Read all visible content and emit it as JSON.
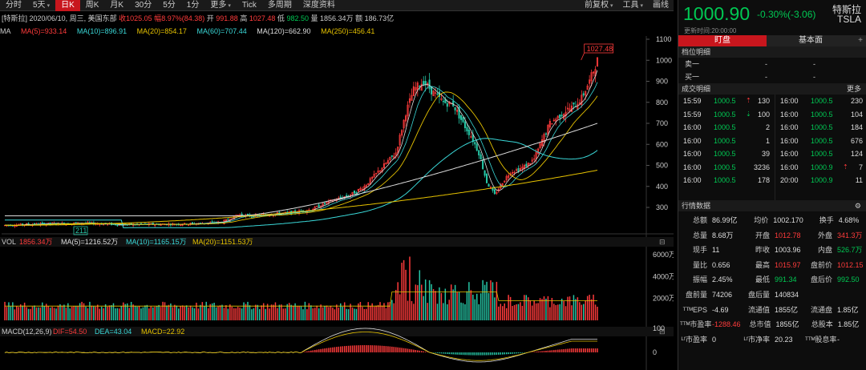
{
  "toolbar": {
    "tabs": [
      {
        "label": "分时"
      },
      {
        "label": "5天",
        "caret": "▾"
      },
      {
        "label": "日K",
        "active": true
      },
      {
        "label": "周K"
      },
      {
        "label": "月K"
      },
      {
        "label": "30分"
      },
      {
        "label": "5分"
      },
      {
        "label": "1分"
      },
      {
        "label": "更多",
        "caret": "▾"
      },
      {
        "label": "Tick"
      },
      {
        "label": "多周期"
      },
      {
        "label": "深度资料"
      }
    ],
    "right": [
      {
        "label": "前复权",
        "caret": "▾"
      },
      {
        "label": "工具",
        "caret": "▾"
      },
      {
        "label": "画线"
      }
    ]
  },
  "info": {
    "stock_tag": "[特斯拉]",
    "date": "2020/06/10, 周三, 美国东部",
    "close_label": "收",
    "close": "1025.05",
    "amp_label": "幅",
    "amp": "8.97%(84.38)",
    "open_label": "开",
    "open": "991.88",
    "high_label": "高",
    "high": "1027.48",
    "low_label": "低",
    "low": "982.50",
    "vol_label": "量",
    "vol": "1856.34万",
    "amt_label": "额",
    "amt": "186.73亿"
  },
  "ma": {
    "label": "MA",
    "ma5": "MA(5)=933.14",
    "ma10": "MA(10)=896.91",
    "ma20": "MA(20)=854.17",
    "ma60": "MA(60)=707.44",
    "ma120": "MA(120)=662.90",
    "ma250": "MA(250)=456.41"
  },
  "vol_line": {
    "label": "VOL",
    "vol": "1856.34万",
    "ma5": "MA(5)=1216.52万",
    "ma10": "MA(10)=1165.15万",
    "ma20": "MA(20)=1151.53万"
  },
  "macd_line": {
    "label": "MACD(12,26,9)",
    "dif": "DIF=54.50",
    "dea": "DEA=43.04",
    "macd": "MACD=22.92"
  },
  "chart_data": {
    "type": "candlestick",
    "price_axis": {
      "ticks": [
        1100,
        1000,
        900,
        800,
        700,
        600,
        500,
        400,
        300
      ],
      "range": [
        211,
        1100
      ]
    },
    "annotations": {
      "high_label": "1027.48",
      "low_label": "211"
    },
    "vol_axis": {
      "ticks": [
        "6000万",
        "4000万",
        "2000万"
      ]
    },
    "macd_axis": {
      "ticks": [
        100,
        0
      ]
    },
    "colors": {
      "up": "#ff3b3b",
      "down": "#26c6a6",
      "ma5": "#dddddd",
      "ma10": "#e6c200",
      "ma20": "#e6c200",
      "ma60": "#3ad8d8",
      "ma120": "#dddddd",
      "ma250": "#e6c200",
      "dif": "#dddddd",
      "dea": "#e6c200"
    }
  },
  "panel": {
    "price": "1000.90",
    "change": "-0.30%(-3.06)",
    "name": "特斯拉",
    "code": "TSLA",
    "updated": "更新时间:20:00:00",
    "tabs": [
      "盯盘",
      "基本面"
    ],
    "plus": "+",
    "bidask_title": "档位明细",
    "sell1": "卖一",
    "sell1_v1": "-",
    "sell1_v2": "-",
    "buy1": "买一",
    "buy1_v1": "-",
    "buy1_v2": "-",
    "trades_title": "成交明细",
    "trades_more": "更多",
    "trades_left": [
      {
        "t": "15:59",
        "p": "1000.5",
        "a": "⇡",
        "v": "130"
      },
      {
        "t": "15:59",
        "p": "1000.5",
        "a": "⇣",
        "v": "100"
      },
      {
        "t": "16:00",
        "p": "1000.5",
        "a": "",
        "v": "2"
      },
      {
        "t": "16:00",
        "p": "1000.5",
        "a": "",
        "v": "1"
      },
      {
        "t": "16:00",
        "p": "1000.5",
        "a": "",
        "v": "39"
      },
      {
        "t": "16:00",
        "p": "1000.5",
        "a": "",
        "v": "3236"
      },
      {
        "t": "16:00",
        "p": "1000.5",
        "a": "",
        "v": "178"
      }
    ],
    "trades_right": [
      {
        "t": "16:00",
        "p": "1000.5",
        "a": "",
        "v": "230"
      },
      {
        "t": "16:00",
        "p": "1000.5",
        "a": "",
        "v": "104"
      },
      {
        "t": "16:00",
        "p": "1000.5",
        "a": "",
        "v": "184"
      },
      {
        "t": "16:00",
        "p": "1000.5",
        "a": "",
        "v": "676"
      },
      {
        "t": "16:00",
        "p": "1000.5",
        "a": "",
        "v": "124"
      },
      {
        "t": "16:00",
        "p": "1000.9",
        "a": "⇡",
        "v": "7"
      },
      {
        "t": "20:00",
        "p": "1000.9",
        "a": "",
        "v": "11"
      }
    ],
    "stats_title": "行情数据",
    "stats": [
      [
        [
          "总额",
          "86.99亿",
          ""
        ],
        [
          "均价",
          "1002.170",
          ""
        ],
        [
          "换手",
          "4.68%",
          ""
        ]
      ],
      [
        [
          "总量",
          "8.68万",
          ""
        ],
        [
          "开盘",
          "1012.78",
          "red"
        ],
        [
          "外盘",
          "341.3万",
          "red"
        ]
      ],
      [
        [
          "现手",
          "11",
          ""
        ],
        [
          "昨收",
          "1003.96",
          ""
        ],
        [
          "内盘",
          "526.7万",
          "grn"
        ]
      ],
      [
        [
          "量比",
          "0.656",
          ""
        ],
        [
          "最高",
          "1015.97",
          "red"
        ],
        [
          "盘前价",
          "1012.15",
          "red"
        ]
      ],
      [
        [
          "振幅",
          "2.45%",
          ""
        ],
        [
          "最低",
          "991.34",
          "grn"
        ],
        [
          "盘后价",
          "992.50",
          "grn"
        ]
      ],
      [
        [
          "盘前量",
          "74206",
          ""
        ],
        [
          "盘后量",
          "140834",
          ""
        ],
        [
          "",
          "",
          " "
        ]
      ],
      [
        [
          "ᵀᵀᴹEPS",
          "-4.69",
          ""
        ],
        [
          "流通值",
          "1855亿",
          ""
        ],
        [
          "流通盘",
          "1.85亿",
          ""
        ]
      ],
      [
        [
          "ᵀᵀᴹ市盈率",
          "-1288.46",
          "red"
        ],
        [
          "总市值",
          "1855亿",
          ""
        ],
        [
          "总股本",
          "1.85亿",
          ""
        ]
      ],
      [
        [
          "ᴸᶠ市盈率",
          "0",
          ""
        ],
        [
          "ᴸᶠ市净率",
          "20.23",
          ""
        ],
        [
          "ᵀᵀᴹ股息率",
          "-",
          ""
        ]
      ]
    ]
  }
}
